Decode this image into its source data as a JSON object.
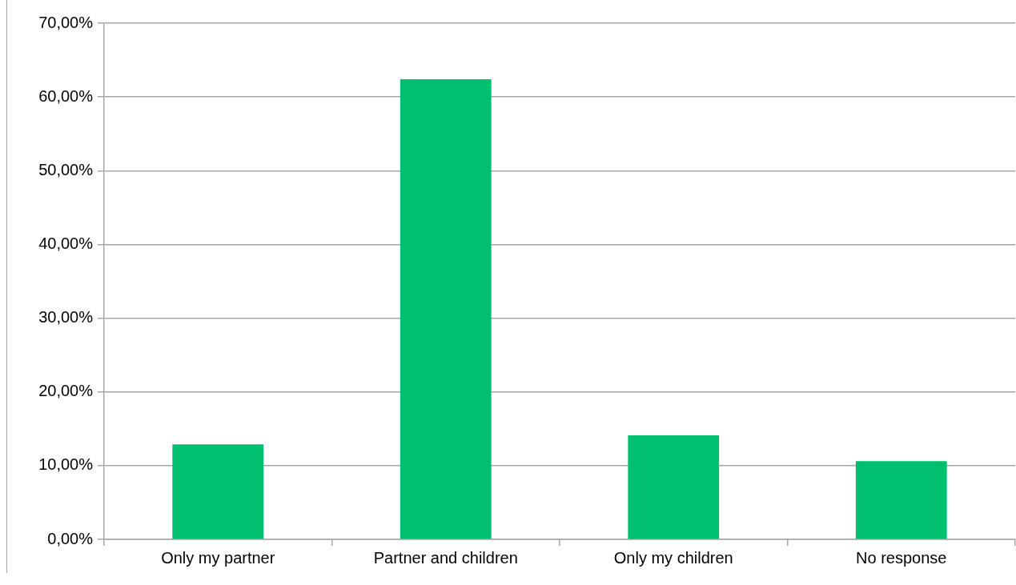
{
  "chart_data": {
    "type": "bar",
    "categories": [
      "Only my partner",
      "Partner and children",
      "Only my children",
      "No response"
    ],
    "values": [
      12.9,
      62.4,
      14.1,
      10.6
    ],
    "color": "#00bf6f",
    "ylim": [
      0,
      70
    ],
    "yticks": [
      {
        "value": 0,
        "label": "0,00%"
      },
      {
        "value": 10,
        "label": "10,00%"
      },
      {
        "value": 20,
        "label": "20,00%"
      },
      {
        "value": 30,
        "label": "30,00%"
      },
      {
        "value": 40,
        "label": "40,00%"
      },
      {
        "value": 50,
        "label": "50,00%"
      },
      {
        "value": 60,
        "label": "60,00%"
      },
      {
        "value": 70,
        "label": "70,00%"
      }
    ],
    "grid": "y"
  }
}
